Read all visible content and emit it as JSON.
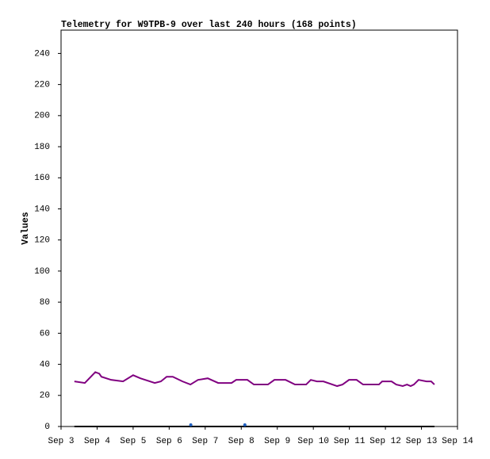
{
  "chart_data": {
    "type": "line",
    "title": "Telemetry for W9TPB-9 over last 240 hours (168 points)",
    "y_label": "Values",
    "xlim": [
      3,
      14
    ],
    "xticks": [
      {
        "value": 3,
        "label": "Sep 3"
      },
      {
        "value": 4,
        "label": "Sep 4"
      },
      {
        "value": 5,
        "label": "Sep 5"
      },
      {
        "value": 6,
        "label": "Sep 6"
      },
      {
        "value": 7,
        "label": "Sep 7"
      },
      {
        "value": 8,
        "label": "Sep 8"
      },
      {
        "value": 9,
        "label": "Sep 9"
      },
      {
        "value": 10,
        "label": "Sep 10"
      },
      {
        "value": 11,
        "label": "Sep 11"
      },
      {
        "value": 12,
        "label": "Sep 12"
      },
      {
        "value": 13,
        "label": "Sep 13"
      },
      {
        "value": 14,
        "label": "Sep 14"
      }
    ],
    "ylim": [
      0,
      255
    ],
    "yticks": [
      0,
      20,
      40,
      60,
      80,
      100,
      120,
      140,
      160,
      180,
      200,
      220,
      240
    ],
    "grid": false,
    "series": [
      {
        "color": "#800080",
        "style": "line",
        "x": [
          3.37,
          3.66,
          3.95,
          4.06,
          4.12,
          4.39,
          4.72,
          5.0,
          5.2,
          5.6,
          5.77,
          5.93,
          6.1,
          6.37,
          6.59,
          6.8,
          7.07,
          7.36,
          7.73,
          7.86,
          8.17,
          8.35,
          8.74,
          8.92,
          9.23,
          9.49,
          9.8,
          9.93,
          10.1,
          10.28,
          10.66,
          10.81,
          10.99,
          11.2,
          11.38,
          11.82,
          11.91,
          12.17,
          12.3,
          12.48,
          12.6,
          12.7,
          12.79,
          12.92,
          13.14,
          13.27,
          13.36
        ],
        "values": [
          29,
          28,
          35,
          34,
          32,
          30,
          29,
          33,
          31,
          28,
          29,
          32,
          32,
          29,
          27,
          30,
          31,
          28,
          28,
          30,
          30,
          27,
          27,
          30,
          30,
          27,
          27,
          30,
          29,
          29,
          26,
          27,
          30,
          30,
          27,
          27,
          29,
          29,
          27,
          26,
          27,
          26,
          27,
          30,
          29,
          29,
          27
        ]
      },
      {
        "color": "#000000",
        "style": "line",
        "x": [
          3.37,
          13.36
        ],
        "values": [
          0,
          0
        ]
      },
      {
        "color": "#1f5fbf",
        "style": "points",
        "x": [
          6.6,
          8.1
        ],
        "values": [
          1,
          1
        ]
      }
    ]
  }
}
